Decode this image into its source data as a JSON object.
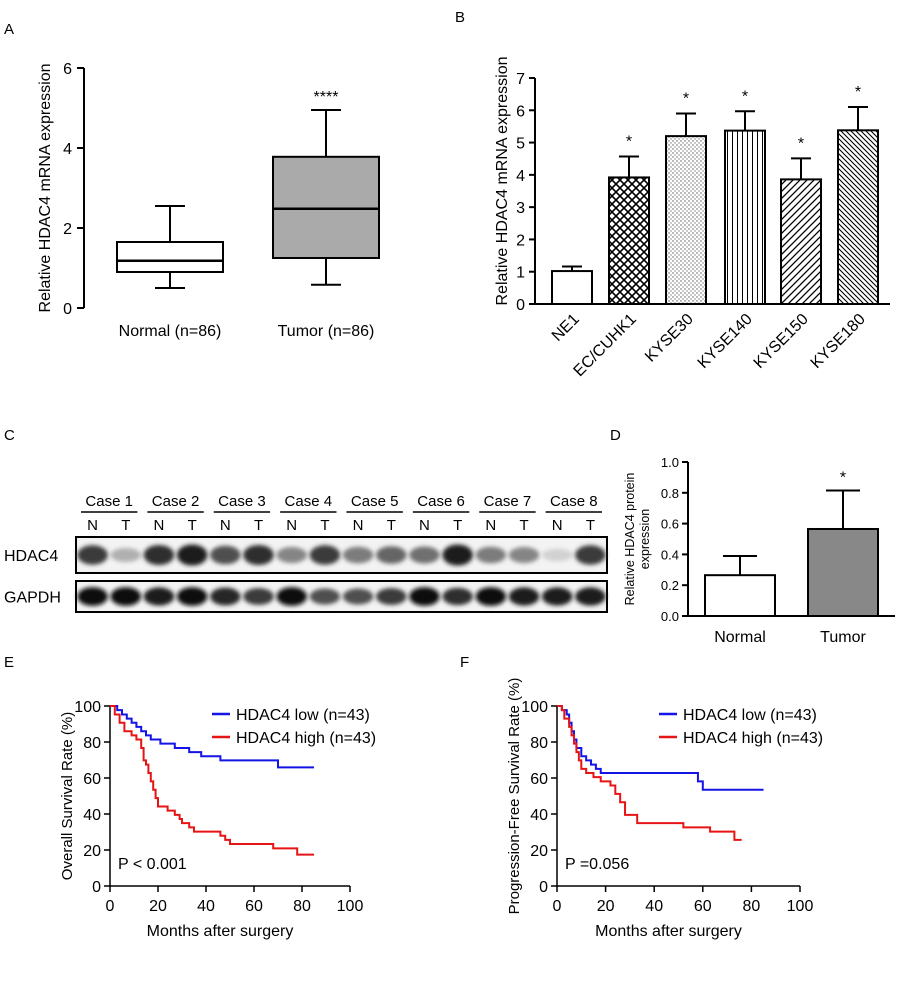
{
  "chart_data": [
    {
      "panel": "A",
      "type": "box",
      "ylabel": "Relative HDAC4 mRNA expression",
      "ylim": [
        0,
        6
      ],
      "yticks": [
        "0",
        "2",
        "4",
        "6"
      ],
      "categories": [
        "Normal (n=86)",
        "Tumor (n=86)"
      ],
      "boxes": [
        {
          "min": 0.5,
          "q1": 0.9,
          "median": 1.18,
          "q3": 1.65,
          "max": 2.55,
          "fill": "#ffffff"
        },
        {
          "min": 0.58,
          "q1": 1.25,
          "median": 2.48,
          "q3": 3.78,
          "max": 4.95,
          "fill": "#aaaaaa"
        }
      ],
      "annotation": "****"
    },
    {
      "panel": "B",
      "type": "bar",
      "ylabel": "Relative HDAC4 mRNA expression",
      "ylim": [
        0,
        7
      ],
      "yticks": [
        "0",
        "1",
        "2",
        "3",
        "4",
        "5",
        "6",
        "7"
      ],
      "categories": [
        "NE1",
        "EC/CUHK1",
        "KYSE30",
        "KYSE140",
        "KYSE150",
        "KYSE180"
      ],
      "values": [
        1.02,
        3.92,
        5.2,
        5.37,
        3.86,
        5.38
      ],
      "errors": [
        0.14,
        0.65,
        0.7,
        0.6,
        0.65,
        0.72
      ],
      "patterns": [
        "none",
        "crosshatch",
        "dots",
        "vertical",
        "diagonal",
        "diagonal-dense"
      ],
      "annotations": [
        "",
        "*",
        "*",
        "*",
        "*",
        "*"
      ]
    },
    {
      "panel": "C",
      "type": "western-blot",
      "cases": [
        "Case 1",
        "Case 2",
        "Case 3",
        "Case 4",
        "Case 5",
        "Case 6",
        "Case 7",
        "Case 8"
      ],
      "lane_labels": [
        "N",
        "T"
      ],
      "rows": [
        {
          "label": "HDAC4",
          "intensity": [
            0.8,
            0.25,
            0.85,
            0.95,
            0.7,
            0.85,
            0.45,
            0.8,
            0.5,
            0.6,
            0.55,
            0.95,
            0.5,
            0.45,
            0.1,
            0.8
          ]
        },
        {
          "label": "GAPDH",
          "intensity": [
            1,
            1,
            0.95,
            1,
            0.9,
            0.8,
            1,
            0.7,
            0.7,
            0.8,
            1,
            0.85,
            1,
            0.95,
            0.95,
            0.95
          ]
        }
      ]
    },
    {
      "panel": "D",
      "type": "bar",
      "ylabel": "Relative HDAC4 protein expression",
      "ylim": [
        0,
        1.0
      ],
      "yticks": [
        "0.0",
        "0.2",
        "0.4",
        "0.6",
        "0.8",
        "1.0"
      ],
      "categories": [
        "Normal",
        "Tumor"
      ],
      "values": [
        0.265,
        0.565
      ],
      "errors": [
        0.125,
        0.25
      ],
      "fills": [
        "#ffffff",
        "#888888"
      ],
      "annotations": [
        "",
        "*"
      ]
    },
    {
      "panel": "E",
      "type": "line",
      "ylabel": "Overall Survival Rate (%)",
      "xlabel": "Months after surgery",
      "xlim": [
        0,
        100
      ],
      "ylim": [
        0,
        100
      ],
      "xticks": [
        "0",
        "20",
        "40",
        "60",
        "80",
        "100"
      ],
      "yticks": [
        "0",
        "20",
        "40",
        "60",
        "80",
        "100"
      ],
      "annotation": "P < 0.001",
      "series": [
        {
          "name": "HDAC4 low (n=43)",
          "color": "#1414e6",
          "x": [
            0,
            3,
            5,
            7,
            9,
            11,
            13,
            15,
            17,
            19,
            21,
            23,
            27,
            33,
            38,
            46,
            70,
            85
          ],
          "y": [
            100,
            97.7,
            95.3,
            93,
            90.7,
            88.4,
            86,
            83.7,
            81.4,
            81.4,
            79.1,
            79.1,
            76.7,
            74.4,
            72.1,
            69.8,
            65.9,
            65.9
          ]
        },
        {
          "name": "HDAC4 high (n=43)",
          "color": "#e61414",
          "x": [
            0,
            2,
            4,
            6,
            9,
            11,
            13,
            14,
            15,
            16,
            17,
            18,
            19,
            20,
            24,
            27,
            29,
            30,
            33,
            35,
            46,
            48,
            50,
            60,
            68,
            78,
            85
          ],
          "y": [
            100,
            95.3,
            90.7,
            86,
            83.7,
            81.4,
            76.7,
            69.8,
            67.4,
            62.8,
            58.1,
            53.5,
            48.8,
            44.2,
            41.9,
            39.5,
            37.2,
            34.9,
            32.6,
            30.2,
            27.9,
            25.6,
            23.3,
            23.3,
            20.9,
            17.4,
            17.4
          ]
        }
      ]
    },
    {
      "panel": "F",
      "type": "line",
      "ylabel": "Progression-Free Survival Rate (%)",
      "xlabel": "Months after surgery",
      "xlim": [
        0,
        100
      ],
      "ylim": [
        0,
        100
      ],
      "xticks": [
        "0",
        "20",
        "40",
        "60",
        "80",
        "100"
      ],
      "yticks": [
        "0",
        "20",
        "40",
        "60",
        "80",
        "100"
      ],
      "annotation": "P =0.056",
      "series": [
        {
          "name": "HDAC4 low (n=43)",
          "color": "#1414e6",
          "x": [
            0,
            2,
            4,
            5,
            6,
            7,
            8,
            10,
            12,
            14,
            16,
            18,
            55,
            58,
            60,
            85
          ],
          "y": [
            100,
            97.7,
            95.3,
            90.7,
            86,
            81.4,
            76.7,
            72.1,
            69.8,
            67.4,
            65.1,
            62.8,
            62.8,
            58.1,
            53.5,
            53.5
          ]
        },
        {
          "name": "HDAC4 high (n=43)",
          "color": "#e61414",
          "x": [
            0,
            2,
            3,
            5,
            6,
            7,
            8,
            9,
            10,
            12,
            15,
            18,
            22,
            24,
            26,
            28,
            33,
            52,
            63,
            73,
            76
          ],
          "y": [
            100,
            97.7,
            93,
            88.4,
            83.7,
            79.1,
            74.4,
            69.8,
            65.1,
            62.8,
            60.5,
            58.1,
            55.8,
            51.2,
            46.5,
            39.5,
            34.9,
            32.6,
            30.2,
            25.6,
            25.6
          ]
        }
      ]
    }
  ],
  "panel_letters": [
    "A",
    "B",
    "C",
    "D",
    "E",
    "F"
  ]
}
